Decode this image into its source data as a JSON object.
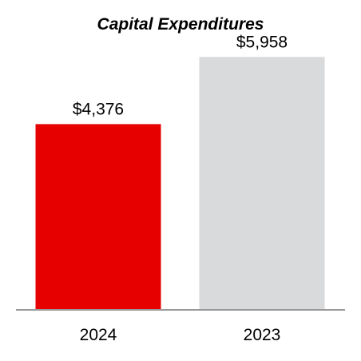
{
  "chart_data": {
    "type": "bar",
    "title": "Capital Expenditures",
    "categories": [
      "2024",
      "2023"
    ],
    "values": [
      4376,
      5958
    ],
    "data_labels": [
      "$4,376",
      "$5,958"
    ],
    "colors": [
      "#e60000",
      "#d9dadb"
    ],
    "axis_color": "#9a9a9a",
    "ylim": [
      0,
      7300
    ],
    "grid": false,
    "legend": "none"
  }
}
